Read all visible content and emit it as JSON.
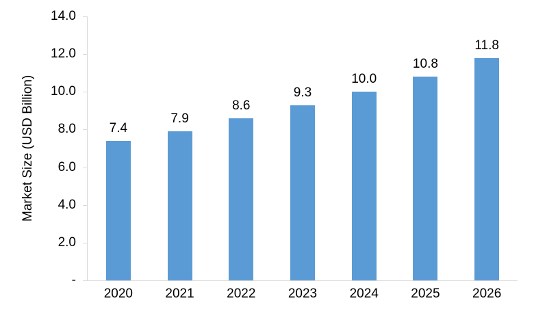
{
  "chart": {
    "y_axis_title": "Market Size (USD Billion)"
  },
  "chart_data": {
    "type": "bar",
    "title": "",
    "xlabel": "",
    "ylabel": "Market Size (USD Billion)",
    "categories": [
      "2020",
      "2021",
      "2022",
      "2023",
      "2024",
      "2025",
      "2026"
    ],
    "values": [
      7.4,
      7.9,
      8.6,
      9.3,
      10.0,
      10.8,
      11.8
    ],
    "value_labels": [
      "7.4",
      "7.9",
      "8.6",
      "9.3",
      "10.0",
      "10.8",
      "11.8"
    ],
    "ylim": [
      0,
      14
    ],
    "ytick_values": [
      0,
      2,
      4,
      6,
      8,
      10,
      12,
      14
    ],
    "ytick_labels": [
      "-",
      "2.0",
      "4.0",
      "6.0",
      "8.0",
      "10.0",
      "12.0",
      "14.0"
    ],
    "grid": false,
    "legend_position": "none",
    "bar_color": "#5b9bd5",
    "axis_color": "#d9d9d9",
    "text_color": "#000000"
  }
}
